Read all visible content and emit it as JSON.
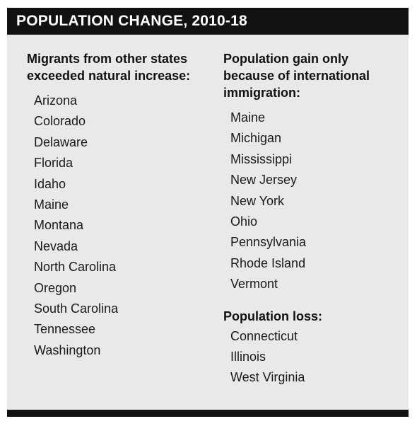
{
  "title": "POPULATION CHANGE, 2010-18",
  "left_column": {
    "heading": "Migrants from other states exceeded natural increase:",
    "states": [
      "Arizona",
      "Colorado",
      "Delaware",
      "Florida",
      "Idaho",
      "Maine",
      "Montana",
      "Nevada",
      "North Carolina",
      "Oregon",
      "South Carolina",
      "Tennessee",
      "Washington"
    ]
  },
  "right_column": {
    "gain": {
      "heading": "Population gain only because of international immigration:",
      "states": [
        "Maine",
        "Michigan",
        "Mississippi",
        "New Jersey",
        "New York",
        "Ohio",
        "Pennsylvania",
        "Rhode Island",
        "Vermont"
      ]
    },
    "loss": {
      "heading": "Population loss:",
      "states": [
        "Connecticut",
        "Illinois",
        "West Virginia"
      ]
    }
  },
  "colors": {
    "panel_background": "#e9e9e9",
    "header_background": "#111111",
    "header_text": "#ffffff",
    "body_text": "#111111"
  }
}
